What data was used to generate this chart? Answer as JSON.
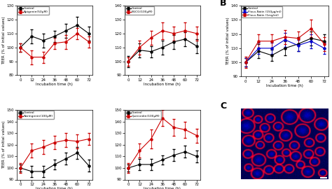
{
  "x": [
    0,
    12,
    24,
    36,
    48,
    60,
    72
  ],
  "panel_A": {
    "top_left": {
      "label_trt": "Apigenin(50μM)",
      "control": [
        100,
        108,
        105,
        108,
        112,
        116,
        110
      ],
      "treatment": [
        100,
        93,
        93,
        103,
        104,
        110,
        104
      ],
      "control_err": [
        3,
        5,
        5,
        4,
        5,
        6,
        5
      ],
      "treatment_err": [
        3,
        5,
        4,
        4,
        5,
        4,
        4
      ],
      "ylim": [
        80,
        130
      ],
      "yticks": [
        80,
        90,
        100,
        110,
        120,
        130
      ]
    },
    "top_right": {
      "label_trt": "EGCG(100μM)",
      "control": [
        100,
        108,
        107,
        110,
        114,
        116,
        111
      ],
      "treatment": [
        100,
        110,
        117,
        122,
        120,
        122,
        120
      ],
      "control_err": [
        4,
        5,
        4,
        5,
        5,
        5,
        5
      ],
      "treatment_err": [
        3,
        5,
        5,
        6,
        5,
        6,
        5
      ],
      "ylim": [
        90,
        140
      ],
      "yticks": [
        90,
        100,
        110,
        120,
        130,
        140
      ]
    },
    "bottom_left": {
      "label_trt": "Naringenin(100μM)",
      "control": [
        100,
        97,
        97,
        103,
        108,
        113,
        102
      ],
      "treatment": [
        100,
        115,
        118,
        122,
        124,
        123,
        125
      ],
      "control_err": [
        3,
        5,
        5,
        4,
        5,
        5,
        5
      ],
      "treatment_err": [
        4,
        6,
        6,
        6,
        6,
        6,
        5
      ],
      "ylim": [
        90,
        150
      ],
      "yticks": [
        90,
        100,
        110,
        120,
        130,
        140,
        150
      ]
    },
    "bottom_right": {
      "label_trt": "Quercedin(100μM)",
      "control": [
        100,
        103,
        103,
        107,
        111,
        114,
        110
      ],
      "treatment": [
        100,
        115,
        125,
        143,
        135,
        133,
        128
      ],
      "control_err": [
        3,
        5,
        5,
        4,
        5,
        5,
        5
      ],
      "treatment_err": [
        4,
        6,
        8,
        7,
        7,
        7,
        6
      ],
      "ylim": [
        90,
        150
      ],
      "yticks": [
        90,
        100,
        110,
        120,
        130,
        140,
        150
      ]
    }
  },
  "panel_B": {
    "control": [
      100,
      108,
      105,
      110,
      113,
      117,
      115
    ],
    "flavo_150": [
      100,
      110,
      110,
      116,
      112,
      115,
      110
    ],
    "flavo_1mg": [
      100,
      115,
      115,
      118,
      117,
      124,
      113
    ],
    "control_err": [
      3,
      5,
      4,
      5,
      5,
      5,
      5
    ],
    "flavo_150_err": [
      3,
      4,
      4,
      5,
      4,
      5,
      4
    ],
    "flavo_1mg_err": [
      4,
      5,
      5,
      5,
      5,
      6,
      5
    ],
    "label_flavo150": "Flavo-Natin (150μg/ml)",
    "label_flavo1mg": "Flavo-Natin (1mg/ml)",
    "ylim": [
      90,
      140
    ],
    "yticks": [
      90,
      100,
      110,
      120,
      130,
      140
    ]
  },
  "colors": {
    "control": "#000000",
    "red": "#cc0000",
    "blue": "#0000cc"
  },
  "xlabel": "Incubation time (h)",
  "ylabel": "TEER (% of initial values)",
  "label_control": "Control"
}
